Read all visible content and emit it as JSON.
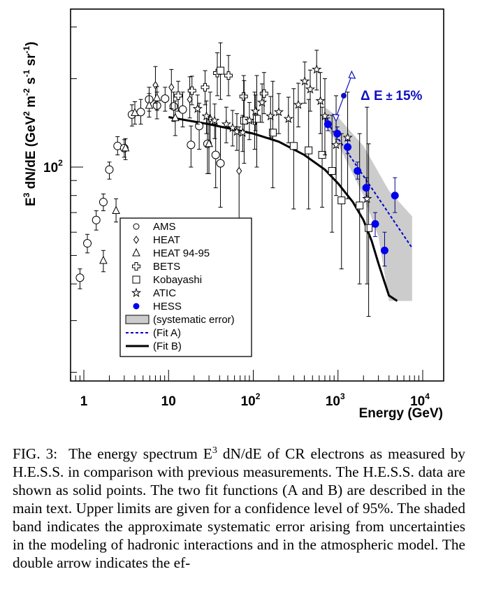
{
  "chart_data": {
    "type": "scatter",
    "title": "",
    "xlabel": "Energy  (GeV)",
    "ylabel": "E^3 dN/dE (GeV^2 m^-2 s^-1 sr^-1)",
    "xscale": "log",
    "yscale": "log",
    "xlim": [
      0.7,
      14000
    ],
    "ylim": [
      35,
      400
    ],
    "x_tick_labels": [
      {
        "value": 1,
        "base": "1",
        "exp": ""
      },
      {
        "value": 10,
        "base": "10",
        "exp": ""
      },
      {
        "value": 100,
        "base": "10",
        "exp": "2"
      },
      {
        "value": 1000,
        "base": "10",
        "exp": "3"
      },
      {
        "value": 10000,
        "base": "10",
        "exp": "4"
      }
    ],
    "y_tick_labels": [
      {
        "value": 100,
        "base": "10",
        "exp": "2"
      }
    ],
    "ylabel_parts": {
      "pre": "E",
      "pre_sup": "3",
      "mid": " dN/dE (GeV",
      "sup1": "2",
      "m": " m",
      "sup2": "-2",
      "s": " s",
      "sup3": "-1",
      "sr": " sr",
      "sup4": "-1",
      "close": ")"
    },
    "series": [
      {
        "name": "AMS",
        "marker": "circle",
        "color": "#000000",
        "points": [
          [
            0.9,
            42,
            38.5,
            45
          ],
          [
            1.1,
            55,
            51,
            59
          ],
          [
            1.4,
            66,
            61,
            71
          ],
          [
            1.7,
            76,
            71,
            81
          ],
          [
            2.0,
            98,
            91,
            104
          ],
          [
            2.5,
            118,
            110,
            127
          ],
          [
            3.0,
            116,
            108,
            124
          ],
          [
            3.7,
            151,
            138,
            163
          ],
          [
            4.7,
            154,
            140,
            170
          ],
          [
            5.9,
            170,
            155,
            187
          ],
          [
            7.3,
            162,
            146,
            180
          ],
          [
            9.1,
            171,
            155,
            187
          ],
          [
            11.5,
            161,
            143,
            180
          ],
          [
            14.7,
            157,
            137,
            180
          ],
          [
            18.4,
            119,
            100,
            138
          ],
          [
            23,
            138,
            115,
            165
          ],
          [
            28.8,
            120,
            95,
            148
          ],
          [
            36,
            110,
            85,
            140
          ],
          [
            41,
            103,
            73,
            137
          ]
        ]
      },
      {
        "name": "HEAT",
        "marker": "diamond",
        "color": "#000000",
        "points": [
          [
            7.0,
            190,
            165,
            220
          ],
          [
            10.8,
            187,
            158,
            215
          ],
          [
            17.8,
            170,
            147,
            203
          ],
          [
            31,
            146,
            118,
            180
          ],
          [
            68,
            97,
            63,
            137
          ]
        ]
      },
      {
        "name": "HEAT 94-95",
        "marker": "triangle",
        "color": "#000000",
        "points": [
          [
            1.7,
            48,
            44,
            52
          ],
          [
            2.4,
            71,
            65,
            78
          ],
          [
            3.1,
            116,
            106,
            125
          ],
          [
            4.0,
            153,
            140,
            167
          ],
          [
            5.9,
            162,
            148,
            178
          ],
          [
            7.3,
            172,
            156,
            188
          ],
          [
            12,
            147,
            128,
            168
          ],
          [
            30,
            120,
            95,
            148
          ]
        ]
      },
      {
        "name": "BETS",
        "marker": "cross",
        "color": "#000000",
        "points": [
          [
            13.0,
            175,
            155,
            196
          ],
          [
            18.9,
            182,
            163,
            204
          ],
          [
            27,
            187,
            163,
            213
          ],
          [
            37.6,
            209,
            175,
            245
          ],
          [
            51,
            205,
            175,
            240
          ],
          [
            77,
            174,
            148,
            205
          ],
          [
            104,
            144,
            115,
            180
          ],
          [
            134,
            178,
            152,
            210
          ]
        ]
      },
      {
        "name": "Kobayashi",
        "marker": "square",
        "color": "#000000",
        "points": [
          [
            41,
            213,
            170,
            265
          ],
          [
            78,
            144,
            103,
            197
          ],
          [
            110,
            146,
            100,
            205
          ],
          [
            170,
            131,
            85,
            196
          ],
          [
            300,
            118,
            72,
            185
          ],
          [
            450,
            114,
            72,
            170
          ],
          [
            650,
            110,
            73,
            160
          ],
          [
            850,
            97,
            60,
            150
          ],
          [
            1100,
            77,
            45,
            130
          ],
          [
            1800,
            74,
            40,
            130
          ],
          [
            2300,
            62,
            31,
            120
          ]
        ]
      },
      {
        "name": "ATIC",
        "marker": "star",
        "color": "#000000",
        "points": [
          [
            22,
            158,
            140,
            176
          ],
          [
            28,
            149,
            130,
            168
          ],
          [
            35,
            144,
            125,
            164
          ],
          [
            48,
            140,
            121,
            160
          ],
          [
            57,
            136,
            118,
            156
          ],
          [
            64,
            132,
            114,
            152
          ],
          [
            75,
            131,
            113,
            150
          ],
          [
            90,
            144,
            124,
            166
          ],
          [
            106,
            155,
            133,
            176
          ],
          [
            127,
            166,
            142,
            192
          ],
          [
            160,
            149,
            126,
            174
          ],
          [
            200,
            154,
            130,
            178
          ],
          [
            260,
            146,
            121,
            173
          ],
          [
            340,
            163,
            137,
            193
          ],
          [
            405,
            196,
            165,
            228
          ],
          [
            470,
            184,
            155,
            214
          ],
          [
            560,
            215,
            183,
            250
          ],
          [
            620,
            168,
            130,
            210
          ],
          [
            700,
            149,
            110,
            200
          ],
          [
            950,
            119,
            80,
            175
          ],
          [
            1300,
            126,
            78,
            180
          ],
          [
            2200,
            78,
            40,
            160
          ]
        ]
      },
      {
        "name": "HESS",
        "marker": "filled-circle",
        "color": "#0000ee",
        "points": [
          [
            760,
            140,
            133,
            147
          ],
          [
            980,
            130,
            124,
            137
          ],
          [
            1300,
            117,
            111,
            123
          ],
          [
            1700,
            97,
            91,
            104
          ],
          [
            2150,
            85,
            79,
            92
          ],
          [
            2750,
            64,
            58,
            70
          ],
          [
            3550,
            52,
            46,
            60
          ],
          [
            4700,
            80,
            70,
            92
          ]
        ]
      }
    ],
    "fits": [
      {
        "name": "(Fit A)",
        "style": "dashed",
        "color": "#0000cc",
        "points": [
          [
            700,
            146
          ],
          [
            7500,
            53
          ]
        ]
      },
      {
        "name": "(Fit B)",
        "style": "solid",
        "color": "#000000",
        "points": [
          [
            10,
            148
          ],
          [
            30,
            140
          ],
          [
            100,
            130
          ],
          [
            200,
            122
          ],
          [
            400,
            110
          ],
          [
            700,
            98
          ],
          [
            1000,
            88
          ],
          [
            1500,
            76
          ],
          [
            2000,
            66
          ],
          [
            2500,
            56
          ],
          [
            3000,
            47
          ],
          [
            3500,
            41
          ],
          [
            4000,
            36.5
          ],
          [
            5000,
            35
          ]
        ]
      }
    ],
    "systematic_band": {
      "name": "(systematic error)",
      "color": "#cccccc",
      "upper": [
        [
          700,
          160
        ],
        [
          1000,
          148
        ],
        [
          2000,
          118
        ],
        [
          4000,
          83
        ],
        [
          7500,
          68
        ]
      ],
      "lower": [
        [
          700,
          138
        ],
        [
          1000,
          120
        ],
        [
          2000,
          80
        ],
        [
          3000,
          58
        ],
        [
          4000,
          35
        ],
        [
          7500,
          35
        ]
      ]
    },
    "annotation": {
      "text_delta": "Δ",
      "text_e": "E",
      "text_pm": "±",
      "text_pct": "15%",
      "color": "#1010c0",
      "arrow_center": [
        1170,
        175
      ],
      "arrow_upper": [
        1450,
        205
      ],
      "arrow_lower": [
        950,
        148
      ]
    },
    "legend": {
      "placement": "lower-left",
      "entries": [
        {
          "label": "AMS",
          "marker": "circle"
        },
        {
          "label": "HEAT",
          "marker": "diamond"
        },
        {
          "label": "HEAT 94-95",
          "marker": "triangle"
        },
        {
          "label": "BETS",
          "marker": "cross"
        },
        {
          "label": "Kobayashi",
          "marker": "square"
        },
        {
          "label": "ATIC",
          "marker": "star"
        },
        {
          "label": "HESS",
          "marker": "filled-circle"
        },
        {
          "label": "(systematic error)",
          "marker": "box"
        },
        {
          "label": "(Fit A)",
          "marker": "dashed-line"
        },
        {
          "label": "(Fit B)",
          "marker": "solid-line"
        }
      ]
    }
  },
  "caption": {
    "label": "FIG. 3:",
    "text_before_sup": "The energy spectrum E",
    "sup": "3",
    "text_after_sup": " dN/dE of CR electrons as measured by H.E.S.S. in comparison with previous measurements. The H.E.S.S. data are shown as solid points. The two fit functions (A and B) are described in the main text. Upper limits are given for a confidence level of 95%.  The shaded band indicates the approximate systematic error arising from uncertainties in the modeling of hadronic interactions and in the atmospheric model.  The double arrow indicates the ef-"
  }
}
